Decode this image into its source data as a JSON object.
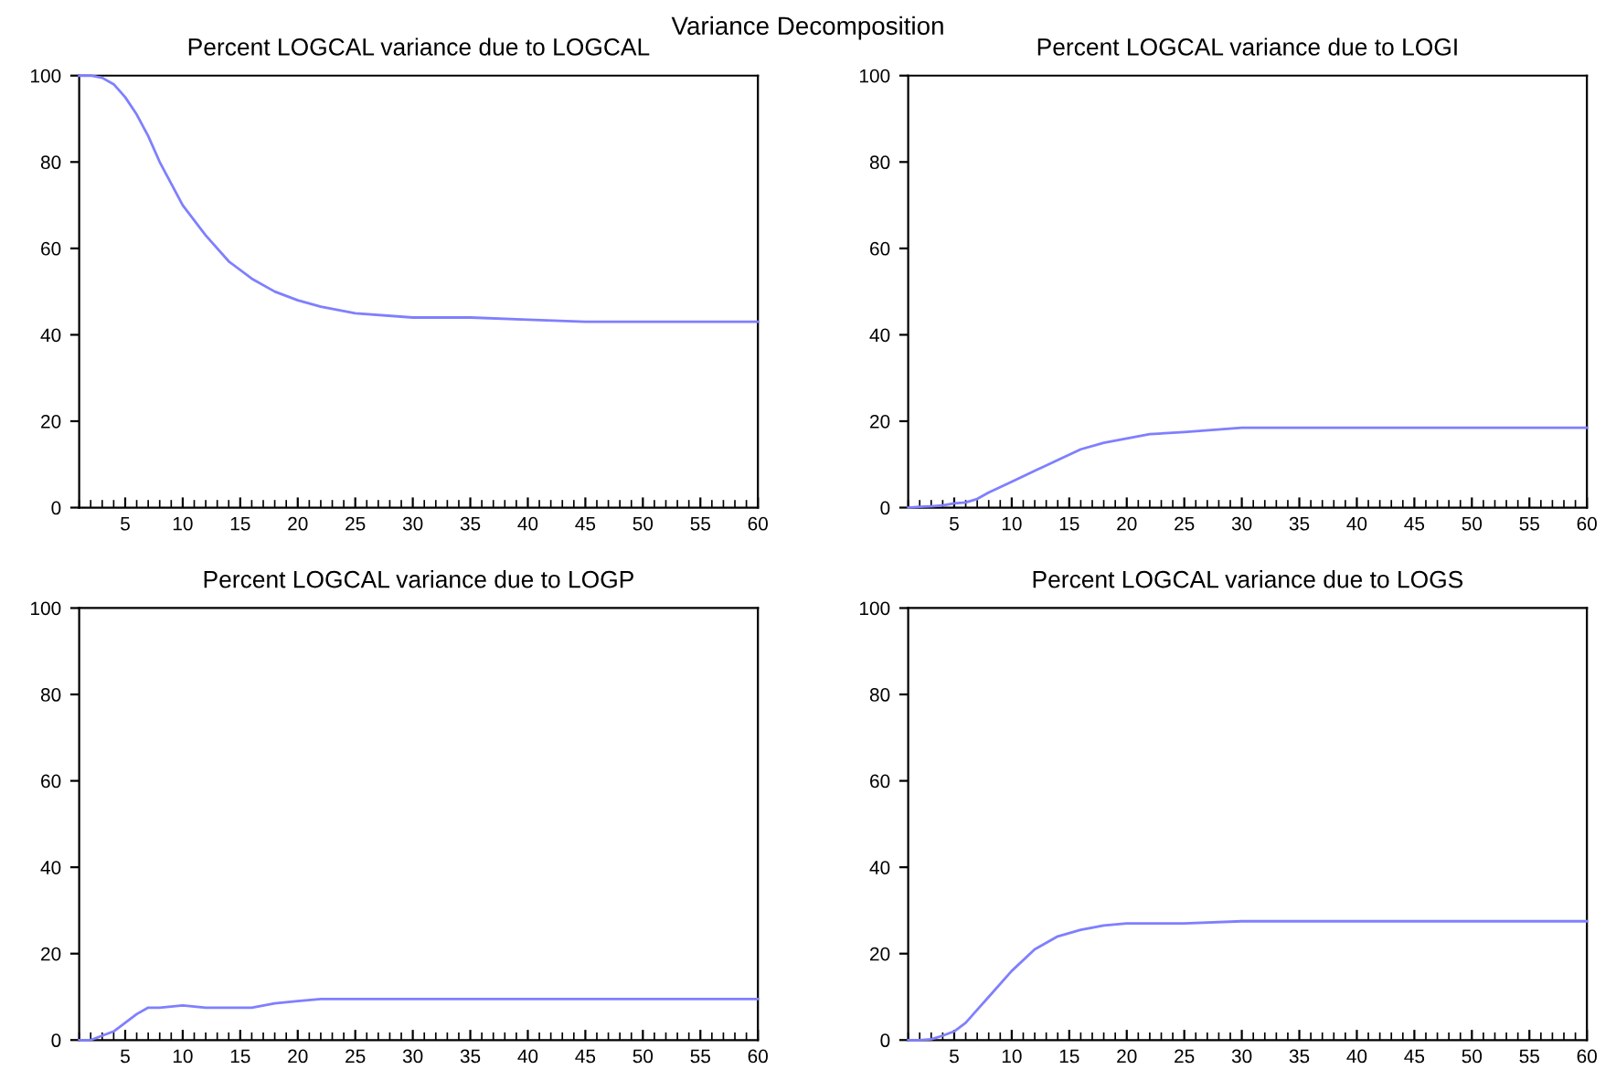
{
  "chart_data": [
    {
      "type": "line",
      "annotations": [
        "Variance Decomposition"
      ],
      "title": "Percent LOGCAL variance due to LOGCAL",
      "xlim": [
        1,
        60
      ],
      "xticks": [
        5,
        10,
        15,
        20,
        25,
        30,
        35,
        40,
        45,
        50,
        55,
        60
      ],
      "ylim": [
        0,
        100
      ],
      "yticks": [
        0,
        20,
        40,
        60,
        80,
        100
      ],
      "grid": false,
      "series": [
        {
          "color": "#7f7fff",
          "x": [
            1,
            2,
            3,
            4,
            5,
            6,
            7,
            8,
            10,
            12,
            14,
            16,
            18,
            20,
            22,
            25,
            30,
            35,
            40,
            45,
            50,
            55,
            60
          ],
          "values": [
            100,
            100,
            99.5,
            98,
            95,
            91,
            86,
            80,
            70,
            63,
            57,
            53,
            50,
            48,
            46.5,
            45,
            44,
            44,
            43.5,
            43,
            43,
            43,
            43
          ]
        }
      ]
    },
    {
      "type": "line",
      "title": "Percent LOGCAL variance due to LOGI",
      "xlim": [
        1,
        60
      ],
      "xticks": [
        5,
        10,
        15,
        20,
        25,
        30,
        35,
        40,
        45,
        50,
        55,
        60
      ],
      "ylim": [
        0,
        100
      ],
      "yticks": [
        0,
        20,
        40,
        60,
        80,
        100
      ],
      "grid": false,
      "series": [
        {
          "color": "#7f7fff",
          "x": [
            1,
            2,
            3,
            4,
            5,
            6,
            7,
            8,
            10,
            12,
            14,
            16,
            18,
            20,
            22,
            25,
            30,
            35,
            40,
            45,
            50,
            55,
            60
          ],
          "values": [
            0,
            0.2,
            0.3,
            0.5,
            1,
            1.2,
            2,
            3.5,
            6,
            8.5,
            11,
            13.5,
            15,
            16,
            17,
            17.5,
            18.5,
            18.5,
            18.5,
            18.5,
            18.5,
            18.5,
            18.5
          ]
        }
      ]
    },
    {
      "type": "line",
      "title": "Percent LOGCAL variance due to LOGP",
      "xlim": [
        1,
        60
      ],
      "xticks": [
        5,
        10,
        15,
        20,
        25,
        30,
        35,
        40,
        45,
        50,
        55,
        60
      ],
      "ylim": [
        0,
        100
      ],
      "yticks": [
        0,
        20,
        40,
        60,
        80,
        100
      ],
      "grid": false,
      "series": [
        {
          "color": "#7f7fff",
          "x": [
            1,
            2,
            3,
            4,
            5,
            6,
            7,
            8,
            10,
            12,
            14,
            16,
            18,
            20,
            22,
            25,
            30,
            35,
            40,
            45,
            50,
            55,
            60
          ],
          "values": [
            0,
            0,
            1,
            2,
            4,
            6,
            7.5,
            7.5,
            8,
            7.5,
            7.5,
            7.5,
            8.5,
            9,
            9.5,
            9.5,
            9.5,
            9.5,
            9.5,
            9.5,
            9.5,
            9.5,
            9.5
          ]
        }
      ]
    },
    {
      "type": "line",
      "title": "Percent LOGCAL variance due to LOGS",
      "xlim": [
        1,
        60
      ],
      "xticks": [
        5,
        10,
        15,
        20,
        25,
        30,
        35,
        40,
        45,
        50,
        55,
        60
      ],
      "ylim": [
        0,
        100
      ],
      "yticks": [
        0,
        20,
        40,
        60,
        80,
        100
      ],
      "grid": false,
      "series": [
        {
          "color": "#7f7fff",
          "x": [
            1,
            2,
            3,
            4,
            5,
            6,
            7,
            8,
            10,
            12,
            14,
            16,
            18,
            20,
            22,
            25,
            30,
            35,
            40,
            45,
            50,
            55,
            60
          ],
          "values": [
            0,
            0,
            0.2,
            1,
            2,
            4,
            7,
            10,
            16,
            21,
            24,
            25.5,
            26.5,
            27,
            27,
            27,
            27.5,
            27.5,
            27.5,
            27.5,
            27.5,
            27.5,
            27.5
          ]
        }
      ]
    }
  ]
}
